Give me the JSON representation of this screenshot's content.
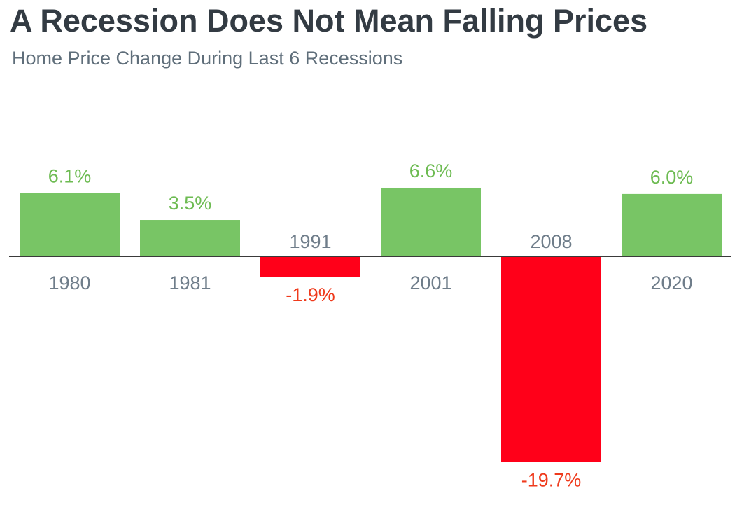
{
  "title": "A Recession Does Not Mean Falling Prices",
  "subtitle": "Home Price Change During Last 6 Recessions",
  "colors": {
    "positive": "#78c565",
    "negative": "#ff0019",
    "positive_label": "#6dbb52",
    "negative_label": "#ef3a1c",
    "category_label": "#6f7d8a",
    "baseline": "#3a3a3a"
  },
  "chart_data": {
    "type": "bar",
    "title": "A Recession Does Not Mean Falling Prices",
    "subtitle": "Home Price Change During Last 6 Recessions",
    "xlabel": "",
    "ylabel": "",
    "categories": [
      "1980",
      "1981",
      "1991",
      "2001",
      "2008",
      "2020"
    ],
    "values": [
      6.1,
      3.5,
      -1.9,
      6.6,
      -19.7,
      6.0
    ],
    "data_labels": [
      "6.1%",
      "3.5%",
      "-1.9%",
      "6.6%",
      "-19.7%",
      "6.0%"
    ],
    "unit": "%",
    "grid": false,
    "legend": "none"
  }
}
